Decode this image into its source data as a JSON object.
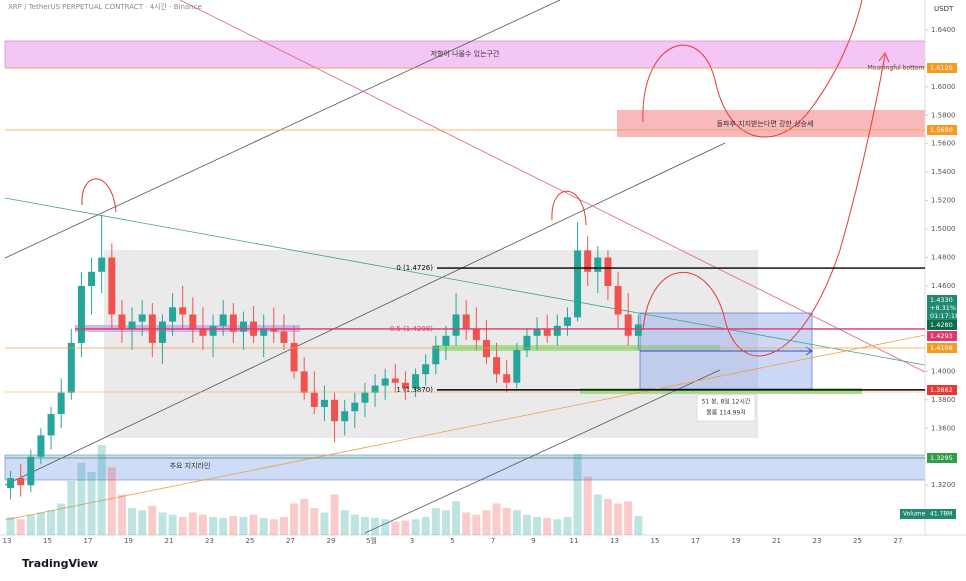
{
  "chart_data": {
    "type": "candlestick",
    "title": "XRP / TetherUS PERPETUAL CONTRACT · 4시간 · Binance",
    "y_axis_label": "USDT",
    "ylim": [
      1.285,
      1.661
    ],
    "yticks": [
      {
        "value": 1.64,
        "label": "1.6400"
      },
      {
        "value": 1.6,
        "label": "1.6000"
      },
      {
        "value": 1.58,
        "label": "1.5800"
      },
      {
        "value": 1.56,
        "label": "1.5600"
      },
      {
        "value": 1.54,
        "label": "1.5400"
      },
      {
        "value": 1.52,
        "label": "1.5200"
      },
      {
        "value": 1.5,
        "label": "1.5000"
      },
      {
        "value": 1.48,
        "label": "1.4800"
      },
      {
        "value": 1.46,
        "label": "1.4600"
      },
      {
        "value": 1.4,
        "label": "1.4000"
      },
      {
        "value": 1.38,
        "label": "1.3800"
      },
      {
        "value": 1.36,
        "label": "1.3600"
      },
      {
        "value": 1.32,
        "label": "1.3200"
      }
    ],
    "xticks": [
      "13",
      "15",
      "17",
      "19",
      "21",
      "23",
      "25",
      "27",
      "29",
      "5월",
      "3",
      "5",
      "7",
      "9",
      "11",
      "13",
      "15",
      "17",
      "19",
      "21",
      "23",
      "25",
      "27"
    ],
    "up_color": "#26a69a",
    "down_color": "#ef5350",
    "open": [
      1.318,
      1.325,
      1.32,
      1.34,
      1.355,
      1.37,
      1.385,
      1.42,
      1.46,
      1.47,
      1.48,
      1.44,
      1.43,
      1.435,
      1.44,
      1.42,
      1.435,
      1.445,
      1.44,
      1.43,
      1.425,
      1.432,
      1.44,
      1.428,
      1.435,
      1.425,
      1.43,
      1.428,
      1.42,
      1.4,
      1.385,
      1.375,
      1.38,
      1.365,
      1.372,
      1.378,
      1.385,
      1.39,
      1.395,
      1.392,
      1.388,
      1.398,
      1.405,
      1.418,
      1.425,
      1.44,
      1.43,
      1.422,
      1.41,
      1.398,
      1.392,
      1.415,
      1.425,
      1.43,
      1.425,
      1.432,
      1.438,
      1.485,
      1.47,
      1.48,
      1.46,
      1.44,
      1.425
    ],
    "high": [
      1.33,
      1.335,
      1.345,
      1.36,
      1.375,
      1.395,
      1.43,
      1.47,
      1.48,
      1.51,
      1.49,
      1.45,
      1.445,
      1.45,
      1.448,
      1.44,
      1.455,
      1.46,
      1.452,
      1.445,
      1.44,
      1.45,
      1.448,
      1.442,
      1.446,
      1.44,
      1.445,
      1.44,
      1.432,
      1.41,
      1.4,
      1.39,
      1.385,
      1.38,
      1.385,
      1.392,
      1.398,
      1.402,
      1.405,
      1.4,
      1.402,
      1.412,
      1.425,
      1.432,
      1.455,
      1.45,
      1.445,
      1.436,
      1.42,
      1.408,
      1.42,
      1.43,
      1.438,
      1.44,
      1.44,
      1.445,
      1.505,
      1.495,
      1.488,
      1.485,
      1.47,
      1.455,
      1.44
    ],
    "low": [
      1.31,
      1.312,
      1.315,
      1.335,
      1.345,
      1.36,
      1.38,
      1.41,
      1.44,
      1.455,
      1.43,
      1.42,
      1.415,
      1.425,
      1.41,
      1.405,
      1.425,
      1.43,
      1.42,
      1.415,
      1.41,
      1.425,
      1.42,
      1.415,
      1.42,
      1.41,
      1.42,
      1.415,
      1.395,
      1.38,
      1.37,
      1.365,
      1.35,
      1.355,
      1.36,
      1.368,
      1.375,
      1.38,
      1.385,
      1.38,
      1.382,
      1.39,
      1.398,
      1.408,
      1.418,
      1.422,
      1.415,
      1.405,
      1.392,
      1.385,
      1.388,
      1.41,
      1.415,
      1.42,
      1.418,
      1.425,
      1.435,
      1.46,
      1.455,
      1.45,
      1.43,
      1.418,
      1.415
    ],
    "close": [
      1.325,
      1.32,
      1.34,
      1.355,
      1.37,
      1.385,
      1.42,
      1.46,
      1.47,
      1.48,
      1.44,
      1.43,
      1.435,
      1.44,
      1.42,
      1.435,
      1.445,
      1.44,
      1.43,
      1.425,
      1.432,
      1.44,
      1.428,
      1.435,
      1.425,
      1.43,
      1.428,
      1.42,
      1.4,
      1.385,
      1.375,
      1.38,
      1.365,
      1.372,
      1.378,
      1.385,
      1.39,
      1.395,
      1.392,
      1.388,
      1.398,
      1.405,
      1.418,
      1.425,
      1.44,
      1.43,
      1.422,
      1.41,
      1.398,
      1.392,
      1.415,
      1.425,
      1.43,
      1.425,
      1.432,
      1.438,
      1.485,
      1.47,
      1.48,
      1.46,
      1.44,
      1.425,
      1.433
    ],
    "volume": [
      40,
      35,
      45,
      50,
      55,
      70,
      120,
      160,
      140,
      200,
      150,
      90,
      60,
      55,
      65,
      50,
      45,
      40,
      50,
      45,
      40,
      38,
      42,
      40,
      45,
      38,
      35,
      40,
      70,
      80,
      60,
      50,
      90,
      55,
      45,
      40,
      38,
      35,
      30,
      32,
      35,
      40,
      60,
      55,
      75,
      50,
      45,
      55,
      70,
      60,
      55,
      45,
      40,
      38,
      35,
      40,
      180,
      130,
      90,
      80,
      70,
      75,
      42
    ],
    "volume_label": "Volume",
    "volume_last": "41.78M",
    "levels": [
      {
        "label": "0 (1.4726)",
        "value": 1.4726
      },
      {
        "label": "0.5 (1.4298)",
        "value": 1.4298
      },
      {
        "label": "1 (1.3870)",
        "value": 1.387
      }
    ],
    "price_labels": [
      "1.6129",
      "1.5690",
      "1.4330",
      "+8.31%",
      "01:17:18",
      "1.4280",
      "1.4293",
      "1.4108",
      "1.3862",
      "1.3295"
    ],
    "annotations": [
      "저항이 나올수 있는구간",
      "Meaningful bottom",
      "돌파후 지지받는다면 강한 상승세",
      "51 봉, 8일 12시간",
      "볼륨 114.99저",
      "추요 지지라인"
    ],
    "brand": "TradingView"
  }
}
